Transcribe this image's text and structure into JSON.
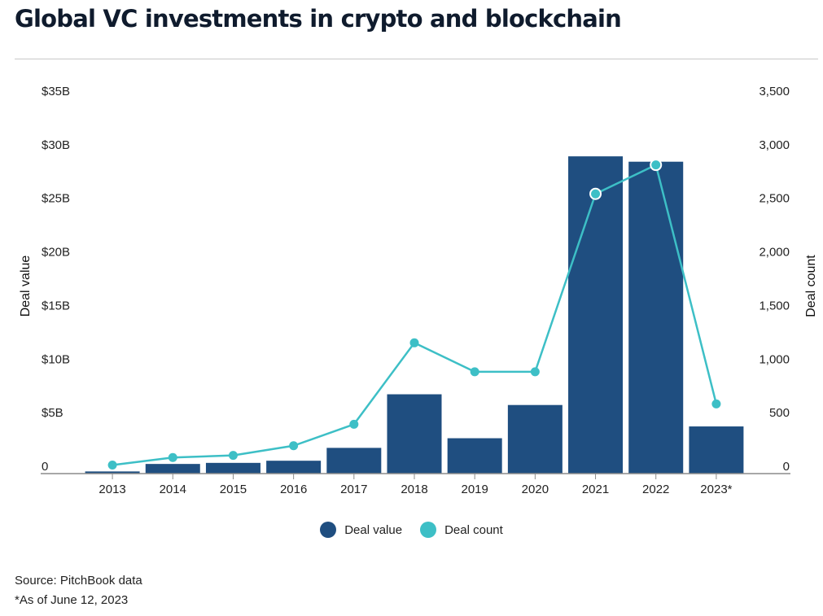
{
  "title": "Global VC investments in crypto and blockchain",
  "source": "Source: PitchBook data",
  "footnote": "*As of June 12, 2023",
  "chart_data": {
    "type": "bar",
    "title": "Global VC investments in crypto and blockchain",
    "categories": [
      "2013",
      "2014",
      "2015",
      "2016",
      "2017",
      "2018",
      "2019",
      "2020",
      "2021",
      "2022",
      "2023*"
    ],
    "series": [
      {
        "name": "Deal value",
        "type": "bar",
        "axis": "left",
        "color": "#1f4e80",
        "values": [
          0.2,
          0.9,
          1.0,
          1.2,
          2.4,
          7.4,
          3.3,
          6.4,
          29.6,
          29.1,
          4.4
        ]
      },
      {
        "name": "Deal count",
        "type": "line",
        "axis": "right",
        "color": "#3dbfc6",
        "values": [
          80,
          150,
          170,
          260,
          460,
          1220,
          950,
          950,
          2610,
          2880,
          650
        ]
      }
    ],
    "ylabel": "Deal value",
    "y2label": "Deal count",
    "ylim": [
      0,
      35
    ],
    "y2lim": [
      0,
      3500
    ],
    "y_ticks": [
      "0",
      "$5B",
      "$10B",
      "$15B",
      "$20B",
      "$25B",
      "$30B",
      "$35B"
    ],
    "y2_ticks": [
      "0",
      "500",
      "1,000",
      "1,500",
      "2,000",
      "2,500",
      "3,000",
      "3,500"
    ],
    "grid": false,
    "legend": "bottom-center"
  }
}
